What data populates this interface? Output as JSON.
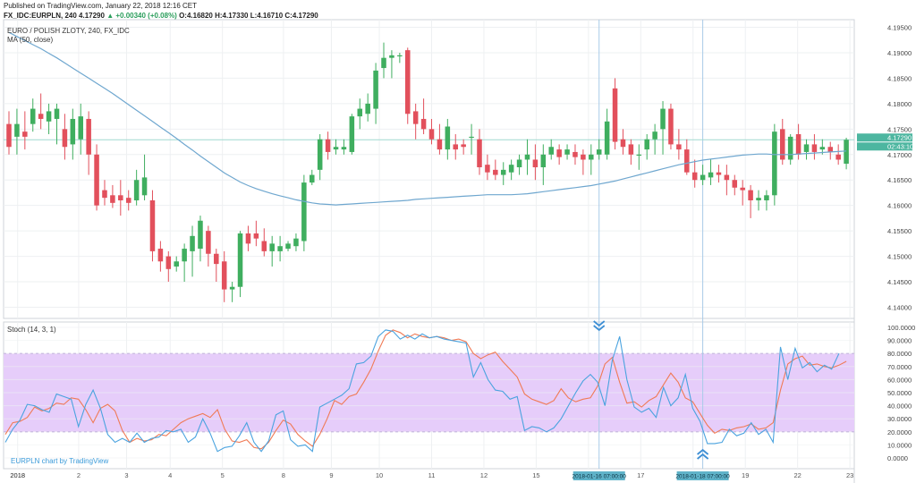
{
  "header": {
    "published": "Published on TradingView.com, January 22, 2018 12:16 CET",
    "symbol": "FX_IDC:EURPLN, 240",
    "last": "4.17290",
    "change": "+0.00340 (+0.08%)",
    "ohlc": "O:4.16820 H:4.17330 L:4.16710 C:4.17290"
  },
  "chart_title": "EURO / POLISH ZLOTY, 240, FX_IDC",
  "ma_label": "MA (50, close)",
  "stoch_label": "Stoch (14, 3, 1)",
  "watermark": "EURPLN chart by TradingView",
  "colors": {
    "up": "#3fae5f",
    "down": "#e2505c",
    "ma": "#6fa7cf",
    "k": "#4aa3df",
    "d": "#f07a55",
    "band": "#e6cdfa",
    "price_line": "#9fd9cf",
    "marker": "#3d8ed4"
  },
  "chart_data": [
    {
      "type": "candlestick",
      "ylim": [
        4.1378,
        4.1965
      ],
      "y_ticks": [
        "4.19500",
        "4.19000",
        "4.18500",
        "4.18000",
        "4.17500",
        "4.17000",
        "4.16500",
        "4.16000",
        "4.15500",
        "4.15000",
        "4.14500",
        "4.14000"
      ],
      "x_ticks": [
        "2018",
        "2",
        "3",
        "4",
        "5",
        "8",
        "9",
        "10",
        "11",
        "12",
        "15",
        "16",
        "17",
        "18",
        "19",
        "22",
        "23"
      ],
      "current_price_label": "4.17290",
      "countdown_label": "02:43:10",
      "candles": [
        [
          4.176,
          4.1785,
          4.17,
          4.1715
        ],
        [
          4.1735,
          4.179,
          4.17,
          4.176
        ],
        [
          4.1745,
          4.1785,
          4.171,
          4.1735
        ],
        [
          4.176,
          4.181,
          4.1745,
          4.179
        ],
        [
          4.178,
          4.182,
          4.175,
          4.177
        ],
        [
          4.1765,
          4.18,
          4.174,
          4.1785
        ],
        [
          4.177,
          4.18,
          4.172,
          4.179
        ],
        [
          4.175,
          4.178,
          4.169,
          4.1715
        ],
        [
          4.172,
          4.179,
          4.169,
          4.177
        ],
        [
          4.173,
          4.18,
          4.17,
          4.1775
        ],
        [
          4.177,
          4.1785,
          4.166,
          4.17
        ],
        [
          4.17,
          4.172,
          4.159,
          4.16
        ],
        [
          4.163,
          4.165,
          4.16,
          4.1615
        ],
        [
          4.162,
          4.164,
          4.1595,
          4.1605
        ],
        [
          4.162,
          4.165,
          4.158,
          4.161
        ],
        [
          4.1615,
          4.163,
          4.159,
          4.1605
        ],
        [
          4.161,
          4.167,
          4.16,
          4.165
        ],
        [
          4.162,
          4.17,
          4.161,
          4.1655
        ],
        [
          4.161,
          4.163,
          4.149,
          4.151
        ],
        [
          4.1515,
          4.153,
          4.147,
          4.149
        ],
        [
          4.15,
          4.151,
          4.145,
          4.1475
        ],
        [
          4.148,
          4.15,
          4.147,
          4.149
        ],
        [
          4.149,
          4.1525,
          4.145,
          4.1515
        ],
        [
          4.151,
          4.156,
          4.146,
          4.154
        ],
        [
          4.1515,
          4.158,
          4.149,
          4.157
        ],
        [
          4.155,
          4.156,
          4.148,
          4.1505
        ],
        [
          4.1505,
          4.1515,
          4.145,
          4.1485
        ],
        [
          4.149,
          4.151,
          4.141,
          4.1435
        ],
        [
          4.1435,
          4.145,
          4.141,
          4.144
        ],
        [
          4.144,
          4.155,
          4.142,
          4.1545
        ],
        [
          4.1545,
          4.156,
          4.151,
          4.1525
        ],
        [
          4.1545,
          4.157,
          4.152,
          4.1535
        ],
        [
          4.153,
          4.1555,
          4.15,
          4.151
        ],
        [
          4.151,
          4.154,
          4.148,
          4.1525
        ],
        [
          4.151,
          4.154,
          4.149,
          4.152
        ],
        [
          4.1515,
          4.153,
          4.151,
          4.1525
        ],
        [
          4.152,
          4.1545,
          4.151,
          4.1535
        ],
        [
          4.153,
          4.166,
          4.151,
          4.1645
        ],
        [
          4.1645,
          4.167,
          4.164,
          4.166
        ],
        [
          4.167,
          4.174,
          4.165,
          4.173
        ],
        [
          4.173,
          4.1745,
          4.169,
          4.1705
        ],
        [
          4.171,
          4.173,
          4.17,
          4.1715
        ],
        [
          4.171,
          4.173,
          4.17,
          4.1715
        ],
        [
          4.1705,
          4.178,
          4.17,
          4.1775
        ],
        [
          4.1775,
          4.181,
          4.175,
          4.179
        ],
        [
          4.178,
          4.182,
          4.1765,
          4.18
        ],
        [
          4.179,
          4.188,
          4.176,
          4.1865
        ],
        [
          4.187,
          4.192,
          4.185,
          4.189
        ],
        [
          4.189,
          4.1905,
          4.185,
          4.1895
        ],
        [
          4.1895,
          4.19,
          4.188,
          4.1895
        ],
        [
          4.1905,
          4.191,
          4.176,
          4.178
        ],
        [
          4.1785,
          4.18,
          4.173,
          4.176
        ],
        [
          4.177,
          4.181,
          4.174,
          4.175
        ],
        [
          4.175,
          4.177,
          4.172,
          4.173
        ],
        [
          4.173,
          4.176,
          4.17,
          4.171
        ],
        [
          4.171,
          4.177,
          4.169,
          4.1755
        ],
        [
          4.172,
          4.174,
          4.169,
          4.171
        ],
        [
          4.172,
          4.173,
          4.17,
          4.1715
        ],
        [
          4.1735,
          4.176,
          4.17,
          4.1735
        ],
        [
          4.173,
          4.175,
          4.166,
          4.1675
        ],
        [
          4.168,
          4.17,
          4.165,
          4.1665
        ],
        [
          4.167,
          4.169,
          4.165,
          4.166
        ],
        [
          4.166,
          4.1685,
          4.164,
          4.167
        ],
        [
          4.1665,
          4.169,
          4.165,
          4.168
        ],
        [
          4.1675,
          4.17,
          4.166,
          4.169
        ],
        [
          4.169,
          4.173,
          4.166,
          4.17
        ],
        [
          4.169,
          4.172,
          4.165,
          4.1675
        ],
        [
          4.1675,
          4.172,
          4.164,
          4.17
        ],
        [
          4.17,
          4.173,
          4.169,
          4.1715
        ],
        [
          4.171,
          4.172,
          4.168,
          4.1695
        ],
        [
          4.17,
          4.172,
          4.169,
          4.171
        ],
        [
          4.1705,
          4.172,
          4.168,
          4.1695
        ],
        [
          4.17,
          4.171,
          4.166,
          4.169
        ],
        [
          4.169,
          4.172,
          4.166,
          4.17
        ],
        [
          4.17,
          4.173,
          4.169,
          4.171
        ],
        [
          4.17,
          4.179,
          4.169,
          4.1765
        ],
        [
          4.183,
          4.185,
          4.171,
          4.1725
        ],
        [
          4.173,
          4.175,
          4.17,
          4.1715
        ],
        [
          4.172,
          4.173,
          4.168,
          4.17
        ],
        [
          4.17,
          4.172,
          4.167,
          4.17
        ],
        [
          4.171,
          4.174,
          4.169,
          4.173
        ],
        [
          4.173,
          4.176,
          4.17,
          4.1745
        ],
        [
          4.175,
          4.1805,
          4.17,
          4.179
        ],
        [
          4.179,
          4.18,
          4.171,
          4.172
        ],
        [
          4.172,
          4.175,
          4.169,
          4.171
        ],
        [
          4.171,
          4.173,
          4.166,
          4.1665
        ],
        [
          4.1665,
          4.169,
          4.1635,
          4.165
        ],
        [
          4.165,
          4.168,
          4.164,
          4.166
        ],
        [
          4.1655,
          4.169,
          4.164,
          4.1665
        ],
        [
          4.1665,
          4.168,
          4.1645,
          4.166
        ],
        [
          4.166,
          4.168,
          4.162,
          4.165
        ],
        [
          4.165,
          4.166,
          4.162,
          4.1635
        ],
        [
          4.1635,
          4.165,
          4.16,
          4.163
        ],
        [
          4.163,
          4.164,
          4.1575,
          4.161
        ],
        [
          4.161,
          4.163,
          4.159,
          4.1615
        ],
        [
          4.161,
          4.163,
          4.159,
          4.162
        ],
        [
          4.162,
          4.176,
          4.16,
          4.1745
        ],
        [
          4.175,
          4.177,
          4.168,
          4.169
        ],
        [
          4.169,
          4.174,
          4.168,
          4.1735
        ],
        [
          4.174,
          4.176,
          4.169,
          4.17
        ],
        [
          4.1705,
          4.173,
          4.169,
          4.172
        ],
        [
          4.172,
          4.174,
          4.169,
          4.1705
        ],
        [
          4.171,
          4.173,
          4.17,
          4.1715
        ],
        [
          4.1715,
          4.1725,
          4.169,
          4.1705
        ],
        [
          4.17,
          4.172,
          4.168,
          4.169
        ],
        [
          4.1682,
          4.1733,
          4.1671,
          4.1729
        ]
      ],
      "ma": [
        4.194,
        4.1932,
        4.1924,
        4.1916,
        4.1908,
        4.1899,
        4.189,
        4.188,
        4.187,
        4.186,
        4.185,
        4.184,
        4.183,
        4.182,
        4.1809,
        4.1798,
        4.1787,
        4.1776,
        4.1765,
        4.1754,
        4.1743,
        4.1732,
        4.172,
        4.1709,
        4.1697,
        4.1686,
        4.1675,
        4.1664,
        4.1655,
        4.1646,
        4.1639,
        4.1633,
        4.1628,
        4.1623,
        4.1619,
        4.1615,
        4.1611,
        4.1608,
        4.1605,
        4.1603,
        4.1602,
        4.1601,
        4.1602,
        4.1603,
        4.1604,
        4.1605,
        4.1606,
        4.1607,
        4.1608,
        4.1609,
        4.161,
        4.1612,
        4.1613,
        4.1614,
        4.1615,
        4.1616,
        4.1617,
        4.1618,
        4.1619,
        4.162,
        4.1621,
        4.1621,
        4.1621,
        4.1621,
        4.1622,
        4.1623,
        4.1625,
        4.1627,
        4.1629,
        4.1631,
        4.1633,
        4.1635,
        4.1637,
        4.1639,
        4.1642,
        4.1645,
        4.1648,
        4.1652,
        4.1656,
        4.166,
        4.1664,
        4.1668,
        4.1672,
        4.1676,
        4.168,
        4.1683,
        4.1686,
        4.1689,
        4.1691,
        4.1693,
        4.1695,
        4.1697,
        4.1699,
        4.17,
        4.1701,
        4.1701,
        4.17,
        4.17,
        4.17,
        4.1701,
        4.1702,
        4.1703,
        4.1704,
        4.1705,
        4.1706,
        4.1707
      ]
    },
    {
      "type": "line",
      "title": "Stoch (14, 3, 1)",
      "ylim": [
        0,
        100
      ],
      "y_ticks": [
        "100.0000",
        "90.0000",
        "80.0000",
        "70.0000",
        "60.0000",
        "50.0000",
        "40.0000",
        "30.0000",
        "20.0000",
        "10.0000",
        "0.0000"
      ],
      "bands": [
        20,
        80
      ],
      "marker_labels": [
        "2018-01-16 07:00:00",
        "2018-01-18 07:00:00"
      ],
      "marker_index": [
        74,
        87
      ],
      "series": [
        {
          "values": [
            18,
            27,
            28,
            31,
            39,
            36,
            38,
            42,
            41,
            46,
            45,
            37,
            27,
            38,
            41,
            36,
            21,
            12,
            15,
            13,
            14,
            18,
            17,
            22,
            27,
            30,
            32,
            34,
            31,
            37,
            22,
            13,
            12,
            14,
            8,
            7,
            12,
            21,
            29,
            26,
            18,
            13,
            9,
            18,
            30,
            44,
            41,
            47,
            49,
            58,
            68,
            82,
            94,
            98,
            96,
            92,
            95,
            93,
            92,
            93,
            92,
            90,
            91,
            89,
            80,
            76,
            79,
            81,
            74,
            68,
            62,
            49,
            45,
            43,
            41,
            44,
            53,
            46,
            43,
            45,
            46,
            55,
            72,
            77,
            58,
            42,
            43,
            39,
            44,
            47,
            56,
            65,
            58,
            46,
            43,
            34,
            25,
            19,
            22,
            21,
            23,
            24,
            26,
            22,
            23,
            27,
            52,
            72,
            76,
            78,
            71,
            72,
            70,
            69,
            71,
            74
          ]
        },
        {
          "values": [
            12,
            22,
            29,
            41,
            40,
            37,
            35,
            49,
            47,
            45,
            24,
            41,
            52,
            38,
            18,
            12,
            15,
            12,
            19,
            12,
            15,
            16,
            21,
            20,
            22,
            12,
            16,
            30,
            19,
            5,
            8,
            9,
            17,
            27,
            12,
            5,
            13,
            33,
            36,
            14,
            9,
            10,
            5,
            39,
            42,
            45,
            48,
            53,
            72,
            73,
            78,
            93,
            98,
            97,
            91,
            94,
            91,
            95,
            92,
            93,
            91,
            90,
            89,
            88,
            62,
            73,
            60,
            52,
            51,
            45,
            47,
            21,
            24,
            23,
            20,
            23,
            30,
            40,
            50,
            59,
            64,
            58,
            40,
            75,
            93,
            60,
            39,
            35,
            38,
            31,
            54,
            40,
            46,
            64,
            38,
            28,
            11,
            11,
            12,
            22,
            17,
            19,
            27,
            18,
            22,
            12,
            85,
            60,
            84,
            69,
            73,
            66,
            71,
            68,
            80
          ]
        }
      ]
    }
  ]
}
